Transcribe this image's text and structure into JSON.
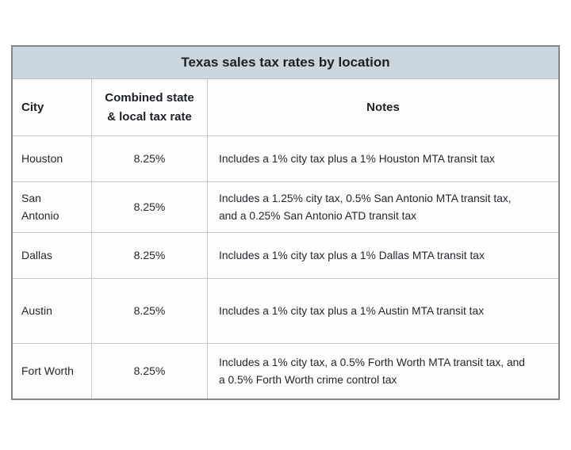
{
  "chart_data": {
    "type": "table",
    "title": "Texas sales tax rates by location",
    "columns": [
      "City",
      "Combined state & local tax rate",
      "Notes"
    ],
    "rows": [
      {
        "city": "Houston",
        "rate": "8.25%",
        "notes": "Includes a 1% city tax plus a 1% Houston MTA transit tax"
      },
      {
        "city": "San Antonio",
        "rate": "8.25%",
        "notes": "Includes a 1.25% city tax, 0.5% San Antonio MTA transit tax, and a 0.25% San Antonio ATD transit tax"
      },
      {
        "city": "Dallas",
        "rate": "8.25%",
        "notes": "Includes a 1% city tax plus a 1% Dallas MTA transit tax"
      },
      {
        "city": "Austin",
        "rate": "8.25%",
        "notes": "Includes a 1% city tax plus a 1% Austin MTA transit tax"
      },
      {
        "city": "Fort Worth",
        "rate": "8.25%",
        "notes": "Includes a 1% city tax, a 0.5% Forth Worth MTA transit tax, and a 0.5% Forth Worth crime control tax"
      }
    ],
    "layout_hints": {
      "header_wrap": "rate column header wraps to two lines",
      "all_rates_equal": "8.25%"
    }
  },
  "colors": {
    "title_background": "#ccd6de",
    "outer_border": "#84888d",
    "inner_border": "#c7cacd",
    "text": "#212529",
    "cell_background": "#fdfdfe"
  }
}
